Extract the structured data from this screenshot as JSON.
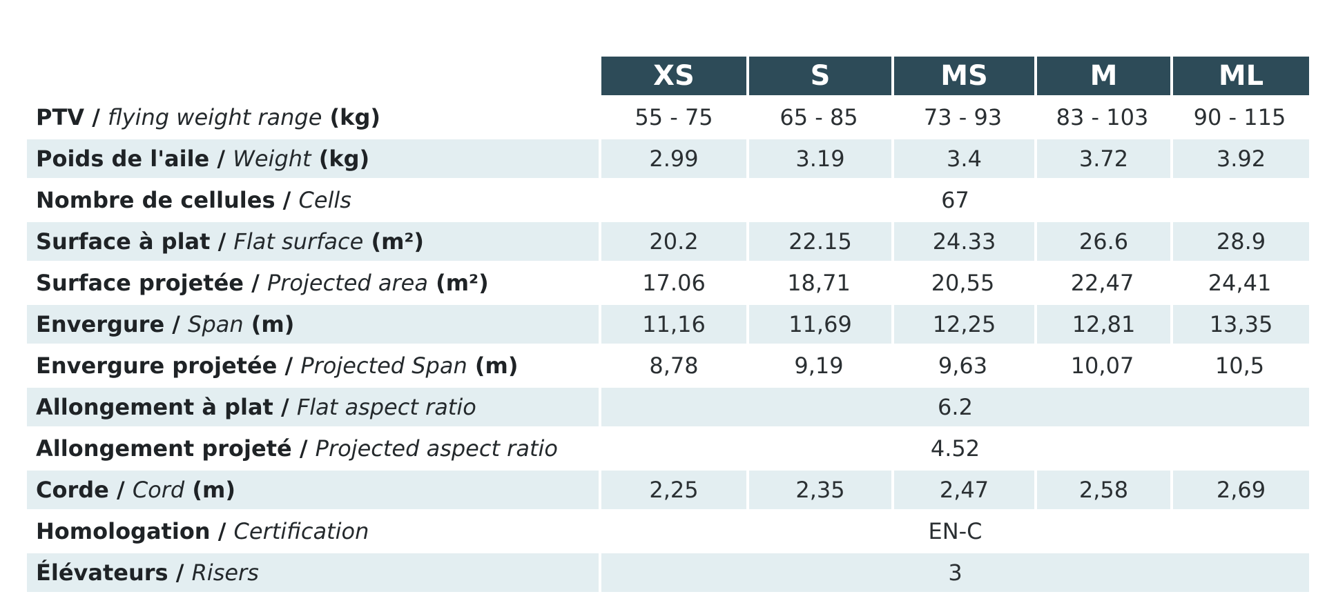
{
  "header": {
    "sizes": [
      "XS",
      "S",
      "MS",
      "M",
      "ML"
    ]
  },
  "rows": [
    {
      "fr": "PTV /",
      "en": "flying weight range",
      "unit": "(kg)",
      "values": [
        "55 - 75",
        "65 - 85",
        "73 - 93",
        "83 - 103",
        "90 - 115"
      ],
      "shaded": false
    },
    {
      "fr": "Poids de l'aile /",
      "en": "Weight",
      "unit": "(kg)",
      "values": [
        "2.99",
        "3.19",
        "3.4",
        "3.72",
        "3.92"
      ],
      "shaded": true
    },
    {
      "fr": "Nombre de cellules /",
      "en": "Cells",
      "unit": "",
      "span": "67",
      "shaded": false
    },
    {
      "fr": "Surface à plat /",
      "en": "Flat surface",
      "unit": "(m²)",
      "values": [
        "20.2",
        "22.15",
        "24.33",
        "26.6",
        "28.9"
      ],
      "shaded": true
    },
    {
      "fr": "Surface projetée /",
      "en": "Projected area",
      "unit": "(m²)",
      "values": [
        "17.06",
        "18,71",
        "20,55",
        "22,47",
        "24,41"
      ],
      "shaded": false
    },
    {
      "fr": "Envergure /",
      "en": "Span",
      "unit": "(m)",
      "values": [
        "11,16",
        "11,69",
        "12,25",
        "12,81",
        "13,35"
      ],
      "shaded": true
    },
    {
      "fr": "Envergure projetée /",
      "en": "Projected Span",
      "unit": "(m)",
      "values": [
        "8,78",
        "9,19",
        "9,63",
        "10,07",
        "10,5"
      ],
      "shaded": false
    },
    {
      "fr": "Allongement à plat /",
      "en": "Flat aspect ratio",
      "unit": "",
      "span": "6.2",
      "shaded": true
    },
    {
      "fr": "Allongement projeté /",
      "en": "Projected aspect ratio",
      "unit": "",
      "span": "4.52",
      "shaded": false
    },
    {
      "fr": "Corde /",
      "en": "Cord",
      "unit": "(m)",
      "values": [
        "2,25",
        "2,35",
        "2,47",
        "2,58",
        "2,69"
      ],
      "shaded": true
    },
    {
      "fr": "Homologation /",
      "en": "Certification",
      "unit": "",
      "span": "EN-C",
      "shaded": false
    },
    {
      "fr": "Élévateurs /",
      "en": "Risers",
      "unit": "",
      "span": "3",
      "shaded": true
    }
  ]
}
